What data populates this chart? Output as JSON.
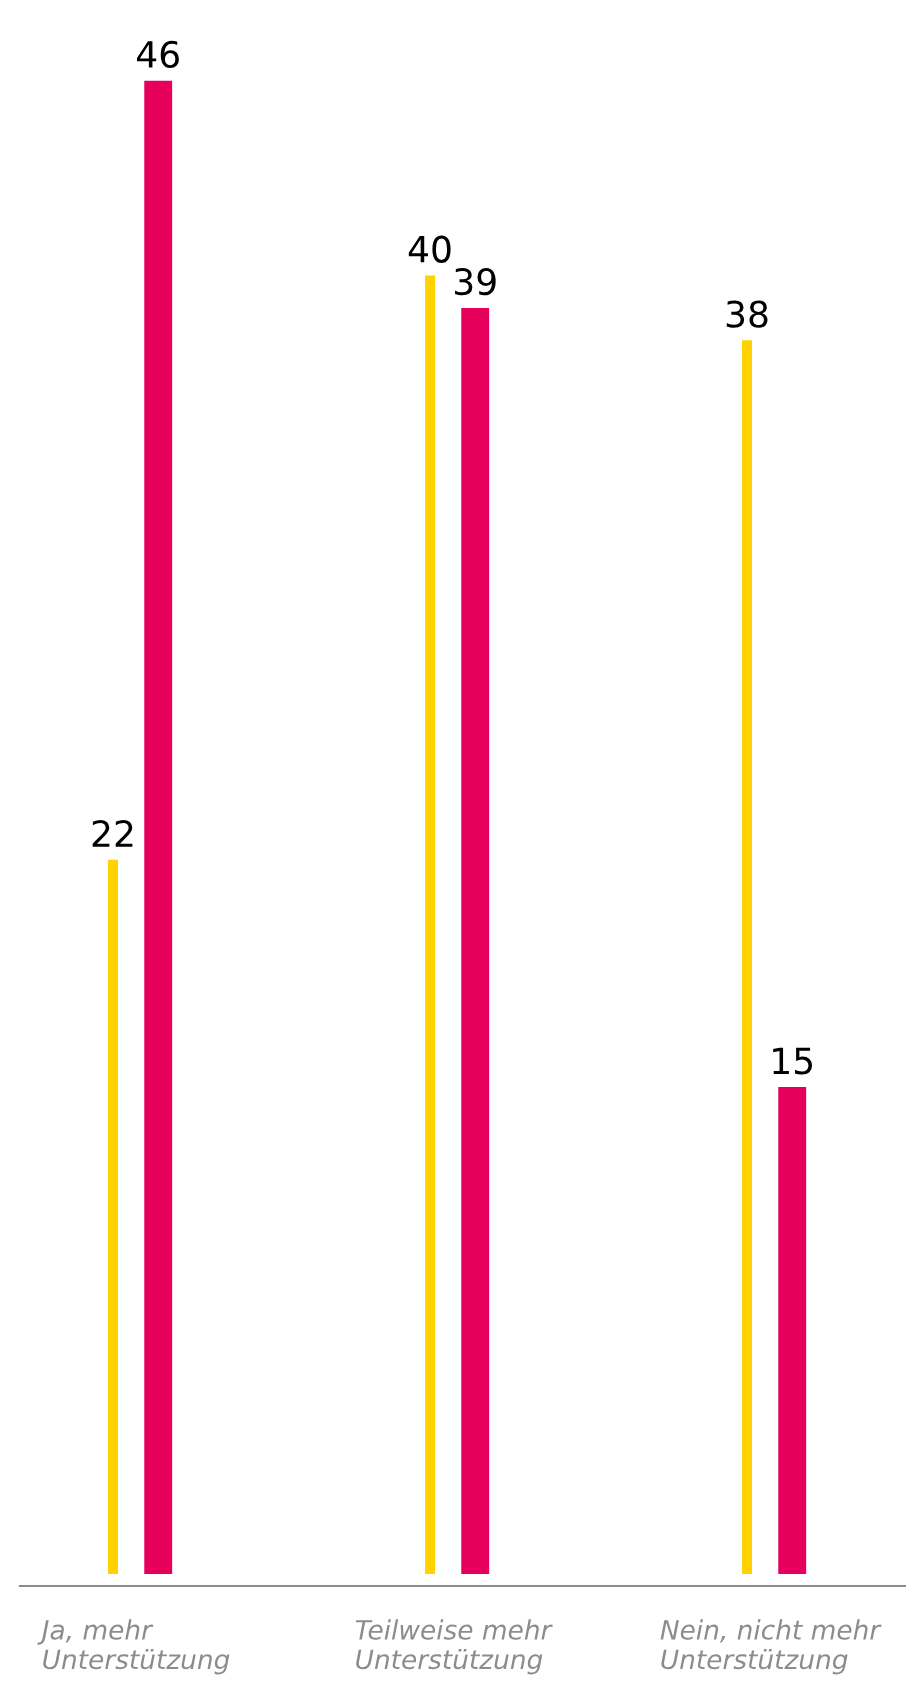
{
  "chart_data": {
    "type": "bar",
    "categories": [
      "Ja, mehr\nUnterstützung",
      "Teilweise mehr\nUnterstützung",
      "Nein, nicht mehr\nUnterstützung"
    ],
    "series": [
      {
        "color": "#ffd200",
        "values": [
          22,
          40,
          38
        ]
      },
      {
        "color": "#e6005c",
        "values": [
          46,
          39,
          15
        ]
      }
    ],
    "data_labels": true,
    "grid": false,
    "legend": false
  }
}
